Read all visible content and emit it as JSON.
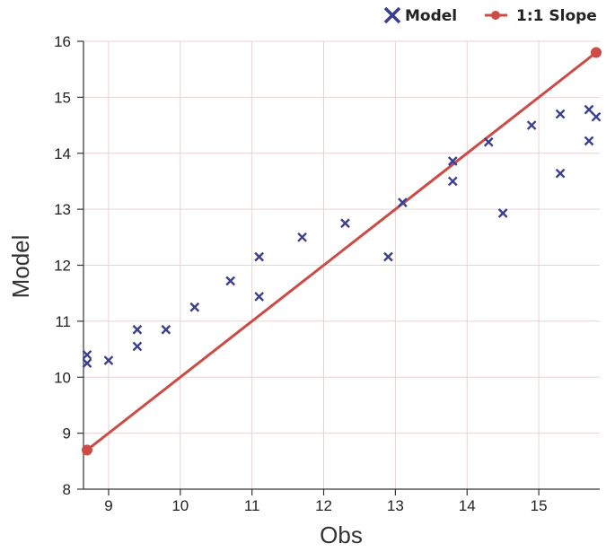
{
  "chart_data": {
    "type": "scatter",
    "xlabel": "Obs",
    "ylabel": "Model",
    "xlim": [
      8.65,
      15.85
    ],
    "ylim": [
      8,
      16
    ],
    "xticks": [
      9,
      10,
      11,
      12,
      13,
      14,
      15
    ],
    "yticks": [
      8,
      9,
      10,
      11,
      12,
      13,
      14,
      15,
      16
    ],
    "grid": true,
    "legend_position": "top-right",
    "series": [
      {
        "name": "Model",
        "kind": "scatter",
        "marker": "x",
        "color": "#3b3f8f",
        "points": [
          [
            8.7,
            10.25
          ],
          [
            8.7,
            10.4
          ],
          [
            9.0,
            10.3
          ],
          [
            9.4,
            10.55
          ],
          [
            9.4,
            10.85
          ],
          [
            9.8,
            10.85
          ],
          [
            10.2,
            11.25
          ],
          [
            10.7,
            11.72
          ],
          [
            11.1,
            11.44
          ],
          [
            11.1,
            12.15
          ],
          [
            11.7,
            12.5
          ],
          [
            12.3,
            12.75
          ],
          [
            12.9,
            12.15
          ],
          [
            13.1,
            13.12
          ],
          [
            13.8,
            13.5
          ],
          [
            13.8,
            13.86
          ],
          [
            14.3,
            14.2
          ],
          [
            14.5,
            12.93
          ],
          [
            14.9,
            14.5
          ],
          [
            15.3,
            13.64
          ],
          [
            15.3,
            14.7
          ],
          [
            15.7,
            14.22
          ],
          [
            15.7,
            14.78
          ],
          [
            15.8,
            14.65
          ]
        ]
      },
      {
        "name": "1:1 Slope",
        "kind": "line",
        "color": "#cc4b45",
        "points": [
          [
            8.7,
            8.7
          ],
          [
            15.8,
            15.8
          ]
        ]
      }
    ]
  }
}
